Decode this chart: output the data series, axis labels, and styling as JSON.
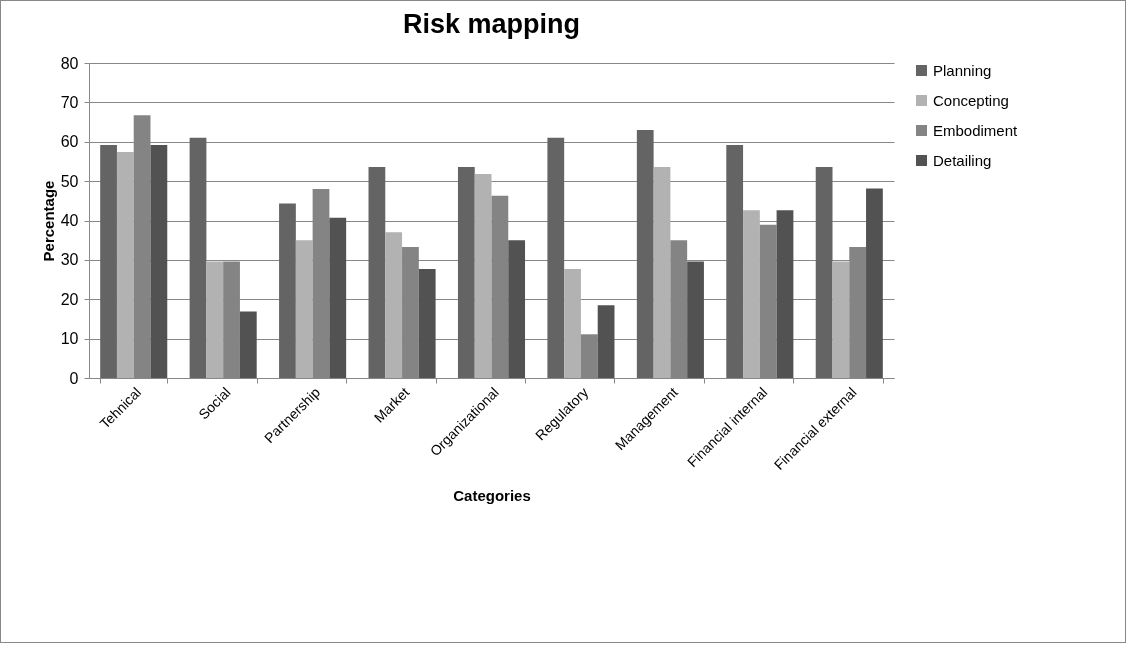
{
  "chart_data": {
    "type": "bar",
    "title": "Risk mapping",
    "xlabel": "Categories",
    "ylabel": "Percentage",
    "categories": [
      "Tehnical",
      "Social",
      "Partnership",
      "Market",
      "Organizational",
      "Regulatory",
      "Management",
      "Financial internal",
      "Financial external"
    ],
    "series": [
      {
        "name": "Planning",
        "color": "#646464",
        "values": [
          59.2,
          61,
          44.3,
          53.6,
          53.6,
          61,
          63,
          59.2,
          53.6
        ]
      },
      {
        "name": "Concepting",
        "color": "#b2b2b2",
        "values": [
          57.4,
          29.6,
          35,
          37,
          51.8,
          27.7,
          53.6,
          42.6,
          29.6
        ]
      },
      {
        "name": "Embodiment",
        "color": "#848484",
        "values": [
          66.7,
          29.6,
          48,
          33.3,
          46.3,
          11.1,
          35,
          38.9,
          33.3
        ]
      },
      {
        "name": "Detailing",
        "color": "#525252",
        "values": [
          59.2,
          16.9,
          40.7,
          27.7,
          35,
          18.5,
          29.6,
          42.6,
          48.1
        ]
      }
    ],
    "ylim": [
      0,
      80
    ],
    "yticks": [
      0,
      10,
      20,
      30,
      40,
      50,
      60,
      70,
      80
    ],
    "grid": "y",
    "legend": "right"
  }
}
